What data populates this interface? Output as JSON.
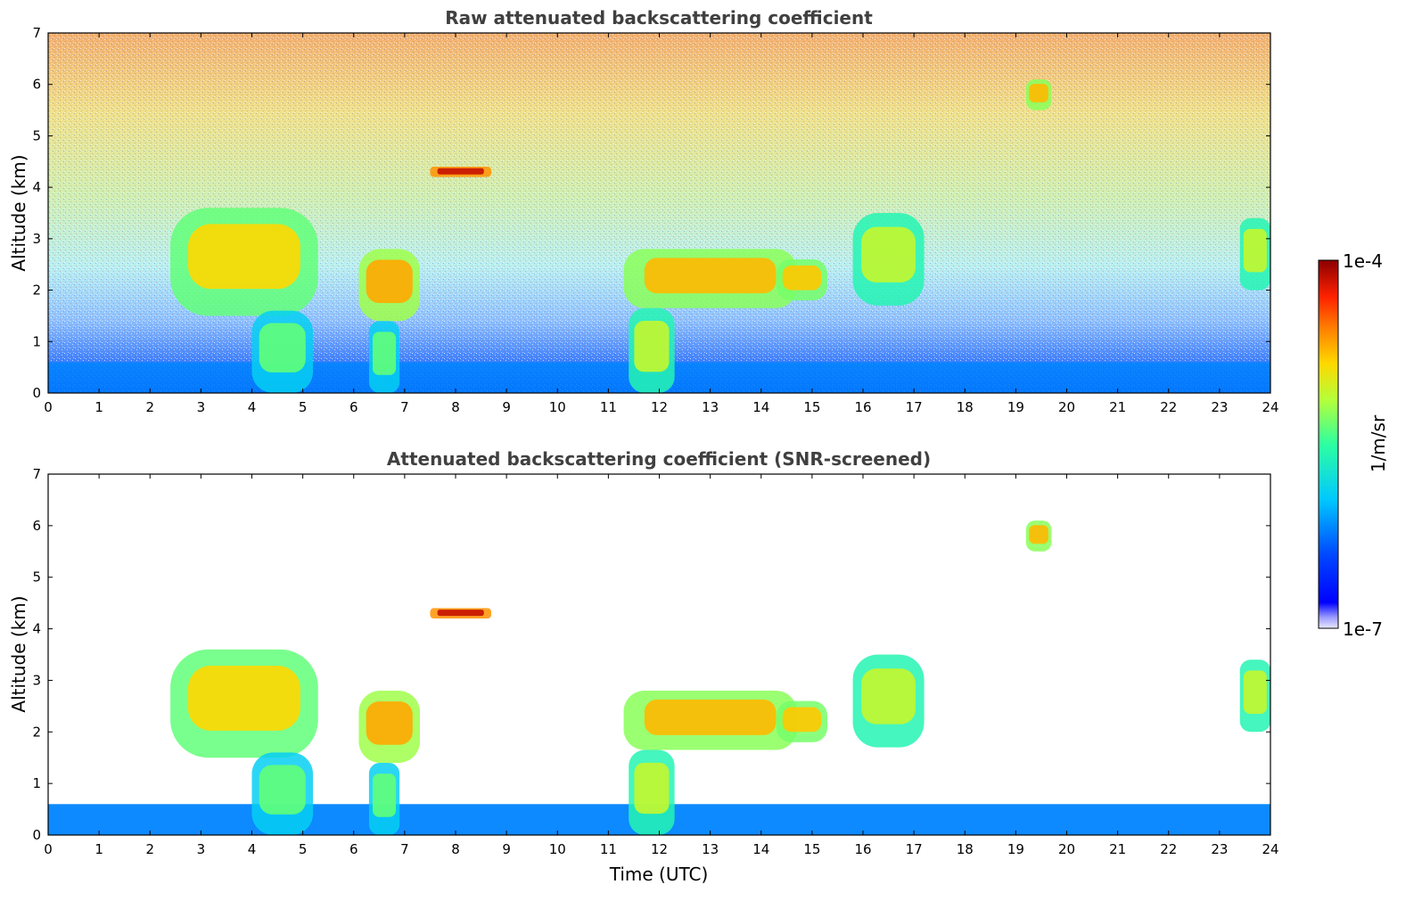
{
  "figure": {
    "colorbar": {
      "label": "1/m/sr",
      "max_label": "1e-4",
      "min_label": "1e-7",
      "scale": "log",
      "colormap": "jet"
    },
    "xlabel": "Time (UTC)"
  },
  "chart_data": [
    {
      "type": "heatmap",
      "title": "Raw attenuated backscattering coefficient",
      "xlabel": "",
      "ylabel": "Altitude (km)",
      "xlim": [
        0,
        24
      ],
      "ylim": [
        0,
        7
      ],
      "xticks": [
        "0",
        "1",
        "2",
        "3",
        "4",
        "5",
        "6",
        "7",
        "8",
        "9",
        "10",
        "11",
        "12",
        "13",
        "14",
        "15",
        "16",
        "17",
        "18",
        "19",
        "20",
        "21",
        "22",
        "23",
        "24"
      ],
      "yticks": [
        "0",
        "1",
        "2",
        "3",
        "4",
        "5",
        "6",
        "7"
      ],
      "screened": false,
      "features": [
        {
          "name": "boundary-layer",
          "x0": 0,
          "x1": 24,
          "y0": 0,
          "y1": 0.6,
          "level": 0.22
        },
        {
          "name": "cloud-a",
          "x0": 2.4,
          "x1": 5.3,
          "y0": 1.5,
          "y1": 3.6,
          "level": 0.68
        },
        {
          "name": "cloud-b",
          "x0": 6.1,
          "x1": 7.3,
          "y0": 1.4,
          "y1": 2.8,
          "level": 0.74
        },
        {
          "name": "cloud-c",
          "x0": 11.3,
          "x1": 14.7,
          "y0": 1.65,
          "y1": 2.8,
          "level": 0.72
        },
        {
          "name": "cloud-d",
          "x0": 14.3,
          "x1": 15.3,
          "y0": 1.8,
          "y1": 2.6,
          "level": 0.7
        },
        {
          "name": "cloud-e",
          "x0": 15.8,
          "x1": 17.2,
          "y0": 1.7,
          "y1": 3.5,
          "level": 0.6
        },
        {
          "name": "cloud-f",
          "x0": 19.2,
          "x1": 19.7,
          "y0": 5.5,
          "y1": 6.1,
          "level": 0.72
        },
        {
          "name": "cloud-g",
          "x0": 23.4,
          "x1": 24,
          "y0": 2.0,
          "y1": 3.4,
          "level": 0.6
        },
        {
          "name": "aerosol-layer",
          "x0": 7.5,
          "x1": 8.7,
          "y0": 4.2,
          "y1": 4.4,
          "level": 0.95
        },
        {
          "name": "column-1",
          "x0": 4.0,
          "x1": 5.2,
          "y0": 0,
          "y1": 1.6,
          "level": 0.5
        },
        {
          "name": "column-2",
          "x0": 6.3,
          "x1": 6.9,
          "y0": 0,
          "y1": 1.4,
          "level": 0.5
        },
        {
          "name": "column-3",
          "x0": 11.4,
          "x1": 12.3,
          "y0": 0,
          "y1": 1.65,
          "level": 0.6
        }
      ]
    },
    {
      "type": "heatmap",
      "title": "Attenuated backscattering coefficient (SNR-screened)",
      "xlabel": "Time (UTC)",
      "ylabel": "Altitude (km)",
      "xlim": [
        0,
        24
      ],
      "ylim": [
        0,
        7
      ],
      "xticks": [
        "0",
        "1",
        "2",
        "3",
        "4",
        "5",
        "6",
        "7",
        "8",
        "9",
        "10",
        "11",
        "12",
        "13",
        "14",
        "15",
        "16",
        "17",
        "18",
        "19",
        "20",
        "21",
        "22",
        "23",
        "24"
      ],
      "yticks": [
        "0",
        "1",
        "2",
        "3",
        "4",
        "5",
        "6",
        "7"
      ],
      "screened": true,
      "features": [
        {
          "name": "boundary-layer",
          "x0": 0,
          "x1": 24,
          "y0": 0,
          "y1": 0.6,
          "level": 0.22
        },
        {
          "name": "cloud-a",
          "x0": 2.4,
          "x1": 5.3,
          "y0": 1.5,
          "y1": 3.6,
          "level": 0.68
        },
        {
          "name": "cloud-b",
          "x0": 6.1,
          "x1": 7.3,
          "y0": 1.4,
          "y1": 2.8,
          "level": 0.74
        },
        {
          "name": "cloud-c",
          "x0": 11.3,
          "x1": 14.7,
          "y0": 1.65,
          "y1": 2.8,
          "level": 0.72
        },
        {
          "name": "cloud-d",
          "x0": 14.3,
          "x1": 15.3,
          "y0": 1.8,
          "y1": 2.6,
          "level": 0.7
        },
        {
          "name": "cloud-e",
          "x0": 15.8,
          "x1": 17.2,
          "y0": 1.7,
          "y1": 3.5,
          "level": 0.6
        },
        {
          "name": "cloud-f",
          "x0": 19.2,
          "x1": 19.7,
          "y0": 5.5,
          "y1": 6.1,
          "level": 0.72
        },
        {
          "name": "cloud-g",
          "x0": 23.4,
          "x1": 24,
          "y0": 2.0,
          "y1": 3.4,
          "level": 0.6
        },
        {
          "name": "aerosol-layer",
          "x0": 7.5,
          "x1": 8.7,
          "y0": 4.2,
          "y1": 4.4,
          "level": 0.95
        },
        {
          "name": "column-1",
          "x0": 4.0,
          "x1": 5.2,
          "y0": 0,
          "y1": 1.6,
          "level": 0.5
        },
        {
          "name": "column-2",
          "x0": 6.3,
          "x1": 6.9,
          "y0": 0,
          "y1": 1.4,
          "level": 0.5
        },
        {
          "name": "column-3",
          "x0": 11.4,
          "x1": 12.3,
          "y0": 0,
          "y1": 1.65,
          "level": 0.6
        }
      ]
    }
  ]
}
